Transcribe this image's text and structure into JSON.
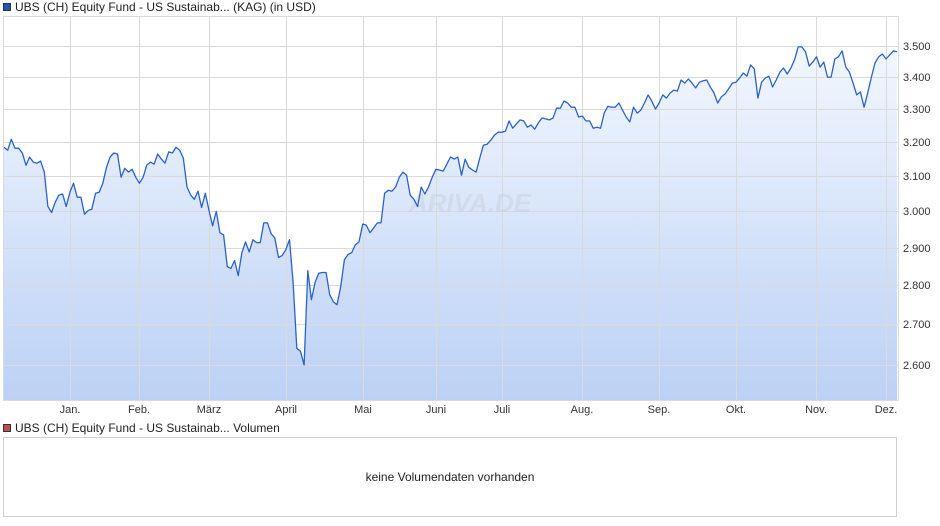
{
  "legend": {
    "price_label": "UBS (CH) Equity Fund - US Sustainab... (KAG) (in USD)",
    "volume_label": "UBS (CH) Equity Fund - US Sustainab... Volumen",
    "price_color": "#1f56b8",
    "volume_color": "#c0504d"
  },
  "watermark": "ARIVA.DE",
  "volume_panel": {
    "message": "keine Volumendaten vorhanden"
  },
  "chart_data": {
    "type": "area",
    "title": "",
    "xlabel": "",
    "ylabel": "",
    "y_scale": "log",
    "ylim": [
      2.5,
      3.57
    ],
    "grid": true,
    "line_color": "#2a62c9",
    "fill_top_color": "#f2f7fe",
    "fill_bottom_color": "#bcd1f5",
    "y_ticks": [
      "3.500",
      "3.400",
      "3.300",
      "3.200",
      "3.100",
      "3.000",
      "2.900",
      "2.800",
      "2.700",
      "2.600"
    ],
    "months": [
      {
        "label": "",
        "values": [
          3.185,
          3.176,
          3.209,
          3.182,
          3.182,
          3.168,
          3.132,
          3.156,
          3.141,
          3.138,
          3.144,
          3.112,
          3.014,
          2.997,
          3.026,
          3.046,
          3.049,
          3.014
        ]
      },
      {
        "label": "Jan.",
        "values": [
          3.054,
          3.08,
          3.04,
          3.04,
          2.992,
          3.003,
          3.006,
          3.051,
          3.054,
          3.08,
          3.126,
          3.156,
          3.168,
          3.165,
          3.097,
          3.123,
          3.112,
          3.12,
          3.097
        ]
      },
      {
        "label": "Feb.",
        "values": [
          3.08,
          3.097,
          3.132,
          3.141,
          3.135,
          3.165,
          3.15,
          3.138,
          3.171,
          3.168,
          3.185,
          3.176,
          3.153,
          3.069,
          3.046,
          3.034,
          3.057,
          3.011,
          3.051
        ]
      },
      {
        "label": "März",
        "values": [
          3.003,
          2.96,
          3.0,
          2.941,
          2.935,
          2.85,
          2.845,
          2.866,
          2.826,
          2.887,
          2.916,
          2.889,
          2.922,
          2.914,
          2.914,
          2.968,
          2.968,
          2.938,
          2.927,
          2.874,
          2.879
        ]
      },
      {
        "label": "April",
        "values": [
          2.895,
          2.922,
          2.808,
          2.641,
          2.634,
          2.6,
          2.839,
          2.763,
          2.808,
          2.832,
          2.834,
          2.834,
          2.776,
          2.758,
          2.75,
          2.797,
          2.868,
          2.882,
          2.887,
          2.908,
          2.916
        ]
      },
      {
        "label": "Mai",
        "values": [
          2.965,
          2.962,
          2.941,
          2.954,
          2.968,
          2.968,
          3.051,
          3.06,
          3.057,
          3.069,
          3.097,
          3.112,
          3.103,
          3.046,
          3.034,
          3.014,
          3.069,
          3.049,
          3.069,
          3.097
        ]
      },
      {
        "label": "Juni",
        "values": [
          3.12,
          3.118,
          3.115,
          3.135,
          3.156,
          3.15,
          3.156,
          3.103,
          3.15,
          3.126,
          3.118,
          3.112,
          3.153,
          3.191,
          3.194,
          3.206,
          3.221,
          3.23
        ]
      },
      {
        "label": "Juli",
        "values": [
          3.23,
          3.233,
          3.264,
          3.242,
          3.255,
          3.267,
          3.264,
          3.245,
          3.252,
          3.239,
          3.258,
          3.273,
          3.27,
          3.267,
          3.273,
          3.303,
          3.303,
          3.325,
          3.319,
          3.306,
          3.306,
          3.276
        ]
      },
      {
        "label": "Aug.",
        "values": [
          3.279,
          3.264,
          3.264,
          3.242,
          3.245,
          3.242,
          3.288,
          3.309,
          3.306,
          3.306,
          3.319,
          3.297,
          3.276,
          3.261,
          3.306,
          3.288,
          3.297,
          3.319,
          3.344,
          3.325,
          3.3
        ]
      },
      {
        "label": "Sep.",
        "values": [
          3.319,
          3.344,
          3.334,
          3.35,
          3.359,
          3.356,
          3.391,
          3.381,
          3.394,
          3.381,
          3.366,
          3.384,
          3.388,
          3.391,
          3.369,
          3.35,
          3.319,
          3.338,
          3.347,
          3.363,
          3.381
        ]
      },
      {
        "label": "Okt.",
        "values": [
          3.384,
          3.397,
          3.413,
          3.403,
          3.439,
          3.426,
          3.334,
          3.384,
          3.397,
          3.403,
          3.369,
          3.391,
          3.416,
          3.429,
          3.41,
          3.429,
          3.455,
          3.497,
          3.497,
          3.481,
          3.435,
          3.448
        ]
      },
      {
        "label": "Nov.",
        "values": [
          3.465,
          3.432,
          3.448,
          3.4,
          3.4,
          3.458,
          3.465,
          3.484,
          3.432,
          3.416,
          3.381,
          3.344,
          3.353,
          3.306,
          3.35,
          3.4,
          3.445,
          3.465,
          3.474
        ]
      },
      {
        "label": "Dez.",
        "values": [
          3.458,
          3.471,
          3.484,
          3.481
        ]
      }
    ]
  }
}
